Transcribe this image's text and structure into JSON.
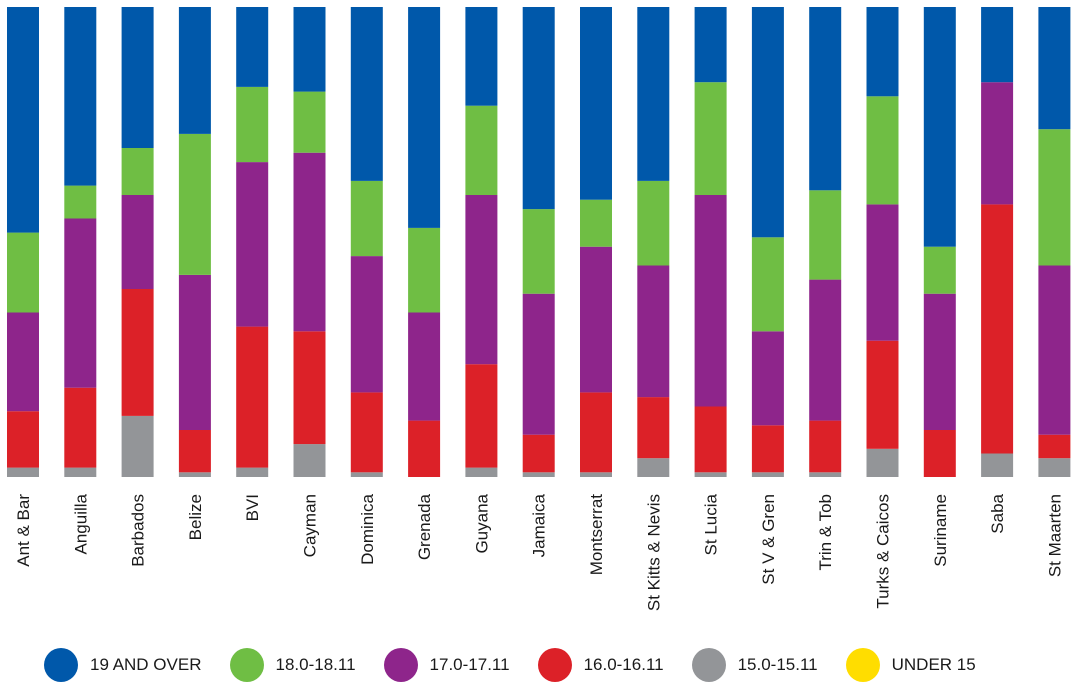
{
  "chart_data": {
    "type": "bar",
    "stacked": true,
    "normalized": true,
    "ylim": [
      0,
      100
    ],
    "categories": [
      "Ant & Bar",
      "Anguilla",
      "Barbados",
      "Belize",
      "BVI",
      "Cayman",
      "Dominica",
      "Grenada",
      "Guyana",
      "Jamaica",
      "Montserrat",
      "St Kitts & Nevis",
      "St Lucia",
      "St V & Gren",
      "Trin & Tob",
      "Turks & Caicos",
      "Suriname",
      "Saba",
      "St Maarten"
    ],
    "series": [
      {
        "name": "UNDER 15",
        "color": "#ffdd00",
        "values": [
          0,
          0,
          0,
          0,
          0,
          0,
          0,
          0,
          0,
          0,
          0,
          0,
          0,
          0,
          0,
          0,
          0,
          0,
          0
        ]
      },
      {
        "name": "15.0-15.11",
        "color": "#939598",
        "values": [
          2,
          2,
          13,
          1,
          2,
          7,
          1,
          0,
          2,
          1,
          1,
          4,
          1,
          1,
          1,
          6,
          0,
          5,
          4
        ]
      },
      {
        "name": "16.0-16.11",
        "color": "#dc2128",
        "values": [
          12,
          17,
          27,
          9,
          30,
          24,
          17,
          12,
          22,
          8,
          17,
          13,
          14,
          10,
          11,
          23,
          10,
          53,
          5
        ]
      },
      {
        "name": "17.0-17.11",
        "color": "#8e258b",
        "values": [
          21,
          36,
          20,
          33,
          35,
          38,
          29,
          23,
          36,
          30,
          31,
          28,
          45,
          20,
          30,
          29,
          29,
          26,
          36
        ]
      },
      {
        "name": "18.0-18.11",
        "color": "#6fbe44",
        "values": [
          17,
          7,
          10,
          30,
          16,
          13,
          16,
          18,
          19,
          18,
          10,
          18,
          24,
          20,
          19,
          23,
          10,
          0,
          29
        ]
      },
      {
        "name": "19 AND OVER",
        "color": "#0058aa",
        "values": [
          48,
          38,
          30,
          27,
          17,
          18,
          37,
          47,
          21,
          43,
          41,
          37,
          16,
          49,
          39,
          19,
          51,
          16,
          26
        ]
      }
    ],
    "legend_order": [
      "19 AND OVER",
      "18.0-18.11",
      "17.0-17.11",
      "16.0-16.11",
      "15.0-15.11",
      "UNDER 15"
    ],
    "legend_position": "bottom",
    "title": "",
    "xlabel": "",
    "ylabel": "",
    "grid": false
  }
}
